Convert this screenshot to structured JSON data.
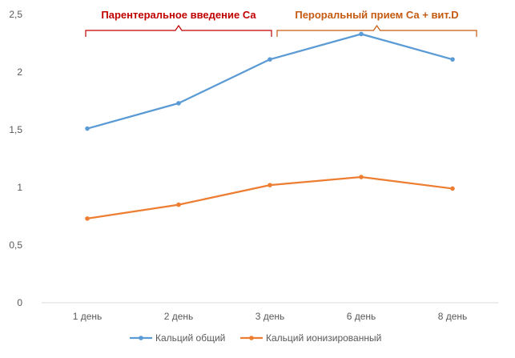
{
  "chart_data": {
    "type": "line",
    "categories": [
      "1 день",
      "2 день",
      "3 день",
      "6 день",
      "8 день"
    ],
    "ylim": [
      0,
      2.5
    ],
    "yticks": [
      "0",
      "0,5",
      "1",
      "1,5",
      "2",
      "2,5"
    ],
    "grid": false,
    "legend_position": "bottom",
    "series": [
      {
        "name": "Кальций общий",
        "color": "#5B9BD5",
        "values": [
          1.51,
          1.73,
          2.11,
          2.33,
          2.11
        ]
      },
      {
        "name": "Кальций ионизированный",
        "color": "#ED7D31",
        "values": [
          0.73,
          0.85,
          1.02,
          1.09,
          0.99
        ]
      }
    ],
    "annotations": [
      {
        "text": "Парентеральное введение Са",
        "color": "#C00000",
        "from_category": 0,
        "to_category": 2
      },
      {
        "text": "Пероральный прием Са + вит.D",
        "color": "#C55A11",
        "from_category": 2,
        "to_category": 4
      }
    ]
  }
}
